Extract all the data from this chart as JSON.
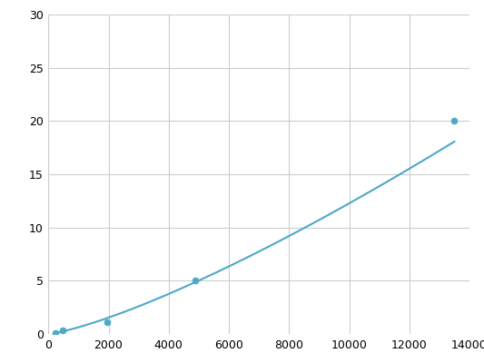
{
  "x": [
    244,
    488,
    1950,
    4875,
    13500
  ],
  "y": [
    0.1,
    0.3,
    1.1,
    5.0,
    20.0
  ],
  "line_color": "#4ea8c8",
  "marker_color": "#4ea8c8",
  "marker_size": 5,
  "line_width": 1.5,
  "xlim": [
    0,
    14000
  ],
  "ylim": [
    0,
    30
  ],
  "xticks": [
    0,
    2000,
    4000,
    6000,
    8000,
    10000,
    12000,
    14000
  ],
  "yticks": [
    0,
    5,
    10,
    15,
    20,
    25,
    30
  ],
  "grid_color": "#cccccc",
  "background_color": "#ffffff",
  "tick_labelsize": 9
}
